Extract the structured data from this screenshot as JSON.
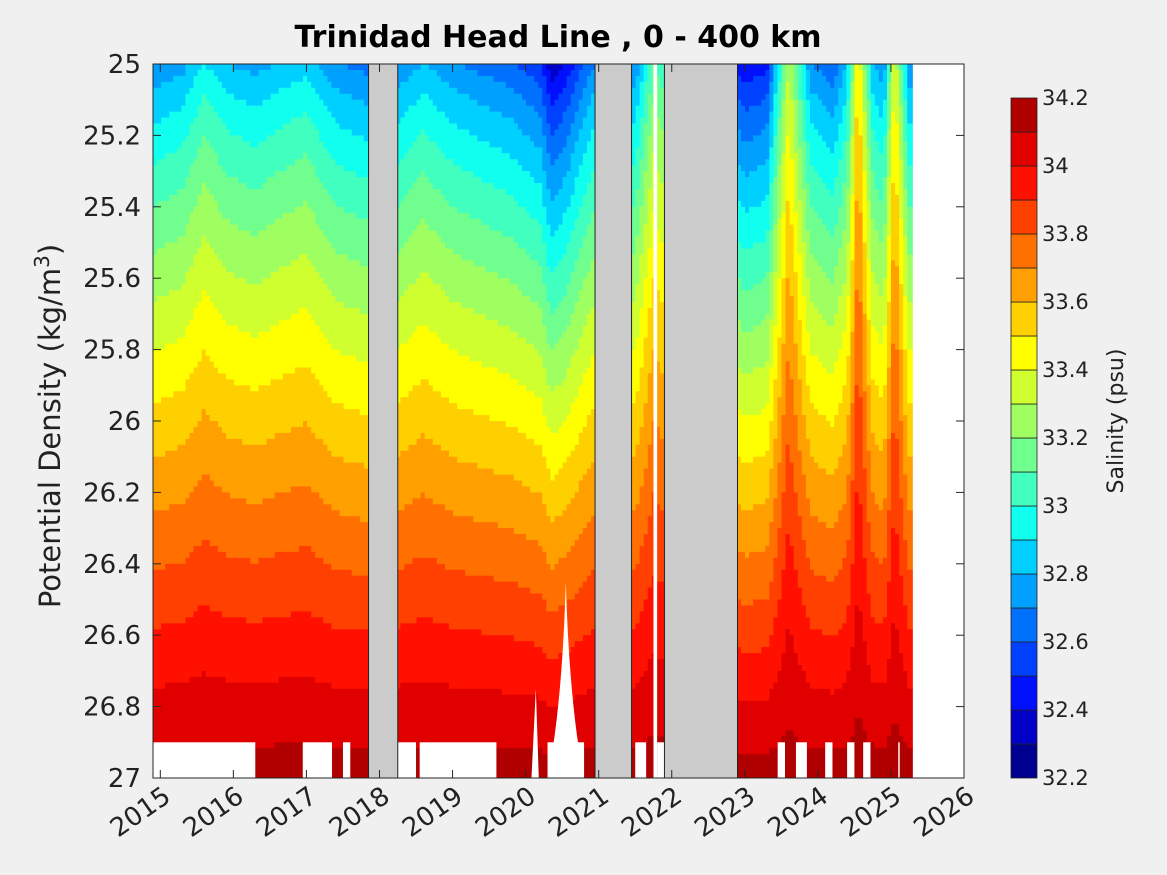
{
  "chart_data": {
    "type": "heatmap",
    "title": "Trinidad Head Line , 0 - 400 km",
    "ylabel": "Potential Density (kg/m",
    "ylabel_superscript": "3",
    "ylabel_suffix": ")",
    "colorbar_label": "Salinity (psu)",
    "y_reversed": true,
    "xlim": [
      2014.9,
      2026.0
    ],
    "ylim": [
      25.0,
      27.0
    ],
    "x_ticks": [
      2015,
      2016,
      2017,
      2018,
      2019,
      2020,
      2021,
      2022,
      2023,
      2024,
      2025,
      2026
    ],
    "x_tick_labels": [
      "2015",
      "2016",
      "2017",
      "2018",
      "2019",
      "2020",
      "2021",
      "2022",
      "2023",
      "2024",
      "2025",
      "2026"
    ],
    "y_ticks": [
      25.0,
      25.2,
      25.4,
      25.6,
      25.8,
      26.0,
      26.2,
      26.4,
      26.6,
      26.8,
      27.0
    ],
    "y_tick_labels": [
      "25",
      "25.2",
      "25.4",
      "25.6",
      "25.8",
      "26",
      "26.2",
      "26.4",
      "26.6",
      "26.8",
      "27"
    ],
    "color_levels": [
      32.2,
      32.3,
      32.4,
      32.5,
      32.6,
      32.7,
      32.8,
      32.9,
      33.0,
      33.1,
      33.2,
      33.3,
      33.4,
      33.5,
      33.6,
      33.7,
      33.8,
      33.9,
      34.0,
      34.1,
      34.2,
      34.3
    ],
    "colorbar_ticks": [
      32.2,
      32.4,
      32.6,
      32.8,
      33.0,
      33.2,
      33.4,
      33.6,
      33.8,
      34.0,
      34.2
    ],
    "colorbar_tick_labels": [
      "32.2",
      "32.4",
      "32.6",
      "32.8",
      "33",
      "33.2",
      "33.4",
      "33.6",
      "33.8",
      "34",
      "34.2"
    ],
    "colors": [
      "#000090",
      "#0000c8",
      "#0010ff",
      "#0040ff",
      "#0070ff",
      "#00a0ff",
      "#00d0ff",
      "#10ffef",
      "#40ffbf",
      "#70ff8f",
      "#a0ff60",
      "#d0ff30",
      "#ffff00",
      "#ffd000",
      "#ffa000",
      "#ff7000",
      "#ff4000",
      "#ff1000",
      "#e00000",
      "#b00000"
    ],
    "surface_salinity": [
      [
        2014.9,
        32.7
      ],
      [
        2015.3,
        32.75
      ],
      [
        2015.6,
        32.9
      ],
      [
        2015.9,
        32.8
      ],
      [
        2016.3,
        32.75
      ],
      [
        2016.6,
        32.8
      ],
      [
        2017.0,
        32.85
      ],
      [
        2017.4,
        32.7
      ],
      [
        2017.85,
        32.65
      ],
      [
        2018.25,
        32.7
      ],
      [
        2018.6,
        32.8
      ],
      [
        2019.0,
        32.7
      ],
      [
        2019.4,
        32.65
      ],
      [
        2019.8,
        32.6
      ],
      [
        2020.2,
        32.5
      ],
      [
        2020.35,
        32.3
      ],
      [
        2020.55,
        32.4
      ],
      [
        2020.8,
        32.6
      ],
      [
        2020.95,
        32.7
      ],
      [
        2021.5,
        32.7
      ],
      [
        2021.75,
        33.1
      ],
      [
        2022.25,
        32.8
      ],
      [
        2023.0,
        32.4
      ],
      [
        2023.3,
        32.45
      ],
      [
        2023.6,
        33.3
      ],
      [
        2023.9,
        32.7
      ],
      [
        2024.2,
        32.6
      ],
      [
        2024.4,
        32.8
      ],
      [
        2024.55,
        33.5
      ],
      [
        2024.75,
        32.8
      ],
      [
        2024.9,
        32.7
      ],
      [
        2025.05,
        33.4
      ],
      [
        2025.25,
        32.7
      ]
    ],
    "deep_salinity": 34.15,
    "gaps": [
      [
        2017.85,
        2018.25
      ],
      [
        2020.95,
        2021.45
      ],
      [
        2021.75,
        2021.8
      ],
      [
        2021.9,
        2022.9
      ]
    ],
    "data_end": 2025.3,
    "bottom_no_data_below": 26.9,
    "bottom_no_data_spans": [
      [
        2014.9,
        2016.3
      ],
      [
        2016.95,
        2017.35
      ],
      [
        2017.5,
        2017.6
      ],
      [
        2018.25,
        2018.5
      ],
      [
        2018.55,
        2019.6
      ],
      [
        2020.3,
        2020.5
      ],
      [
        2020.5,
        2020.8
      ],
      [
        2021.5,
        2021.65
      ],
      [
        2021.8,
        2021.9
      ],
      [
        2023.45,
        2023.55
      ],
      [
        2023.7,
        2023.85
      ],
      [
        2024.1,
        2024.2
      ],
      [
        2024.4,
        2024.5
      ],
      [
        2024.62,
        2024.72
      ],
      [
        2025.1,
        2025.12
      ]
    ],
    "no_data_wedges": [
      {
        "x0": 2020.3,
        "x1": 2020.8,
        "peak_x": 2020.55,
        "peak_y": 26.45
      },
      {
        "x0": 2020.08,
        "x1": 2020.18,
        "peak_x": 2020.14,
        "peak_y": 26.75
      }
    ],
    "gap_color": "#cbcbcb",
    "no_data_color": "#ffffff"
  }
}
